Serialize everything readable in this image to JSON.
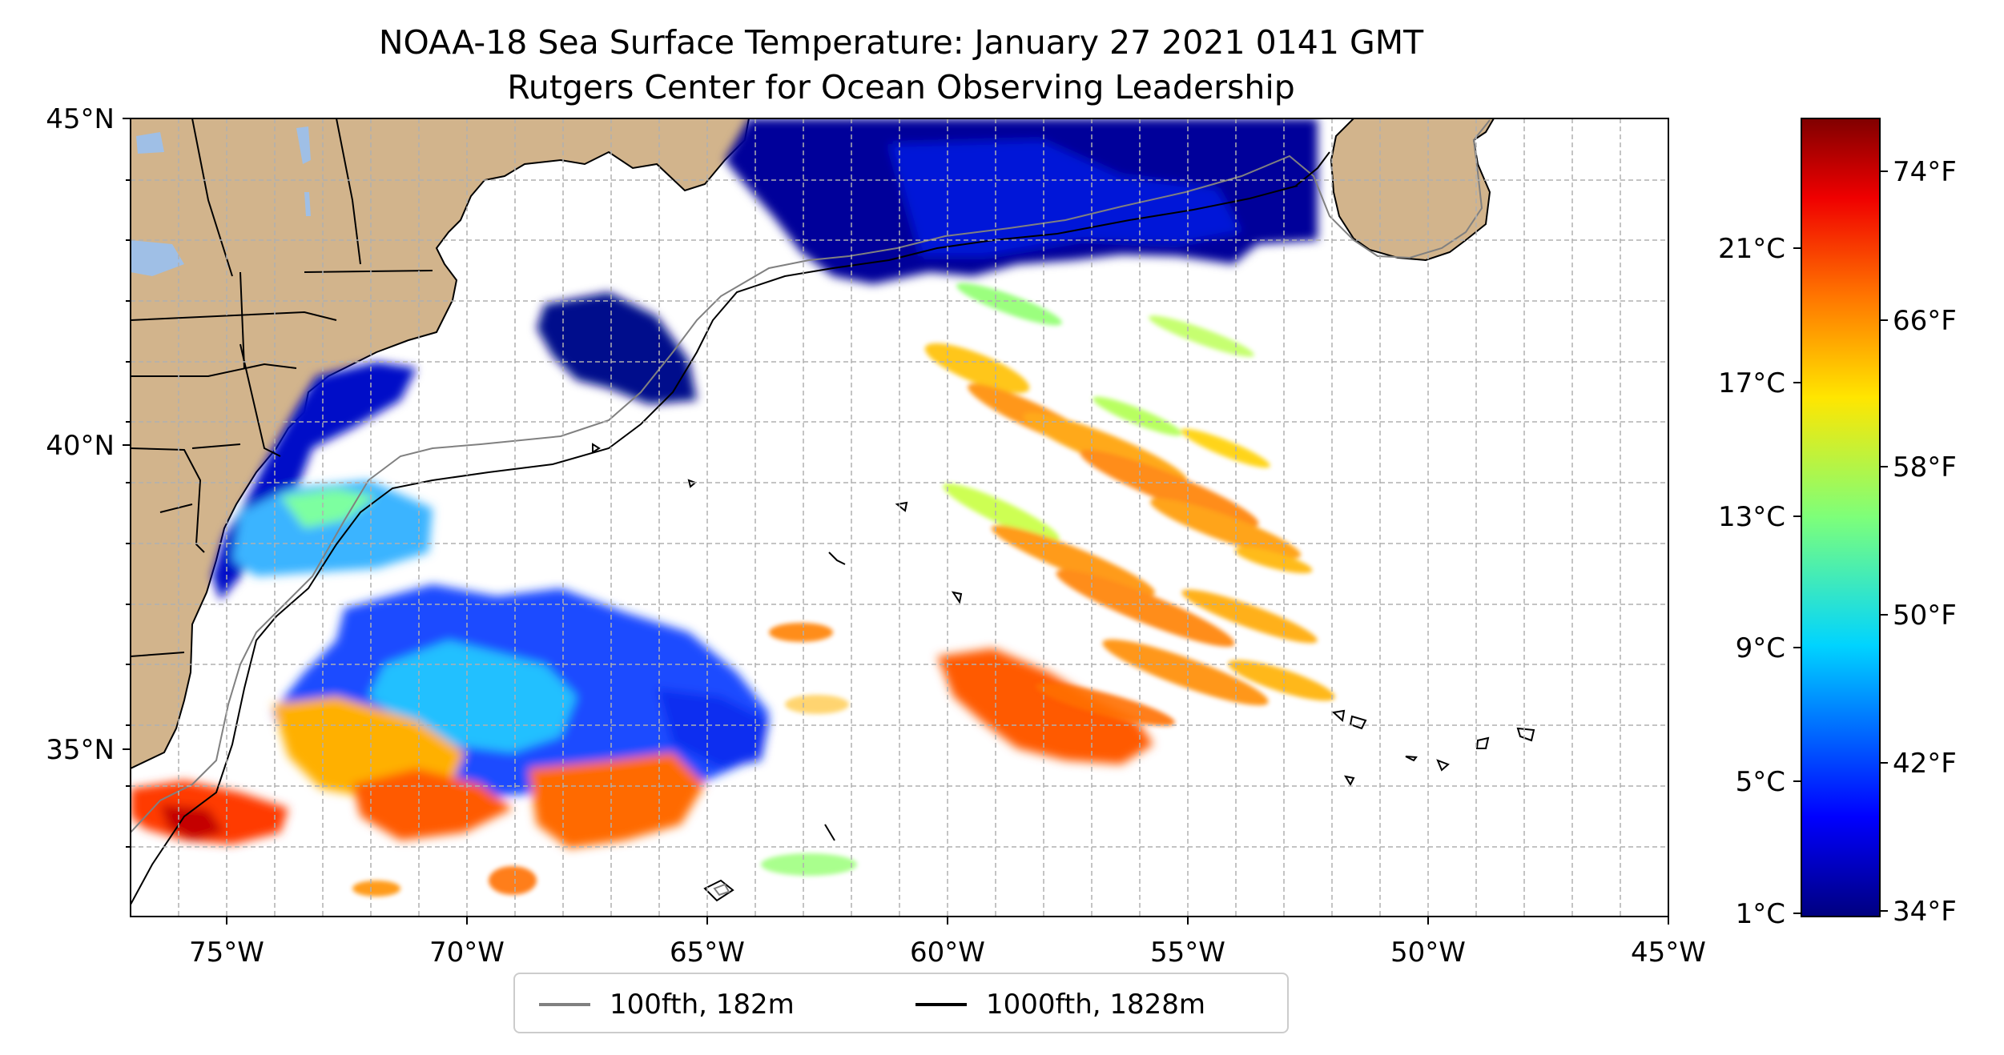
{
  "title": {
    "line1": "NOAA-18 Sea Surface Temperature: January 27 2021 0141 GMT",
    "line2": "Rutgers Center for Ocean Observing Leadership"
  },
  "map": {
    "projection": "plate-carree",
    "lon_range": [
      -77,
      -45
    ],
    "lat_range": [
      32.5,
      45
    ],
    "grid": true,
    "land_color": "#d2b48c",
    "lake_color": "#9fbfe6",
    "lat_ticks": [
      "45°N",
      "40°N",
      "35°N"
    ],
    "lon_ticks": [
      "75°W",
      "70°W",
      "65°W",
      "60°W",
      "55°W",
      "50°W",
      "45°W"
    ]
  },
  "colorbar": {
    "colormap": "jet",
    "range_c": [
      0.6,
      25.4
    ],
    "celsius_ticks": [
      "21°C",
      "17°C",
      "13°C",
      "9°C",
      "5°C",
      "1°C"
    ],
    "fahrenheit_ticks": [
      "74°F",
      "66°F",
      "58°F",
      "50°F",
      "42°F",
      "34°F"
    ]
  },
  "legend": {
    "placement": "bottom-center",
    "items": [
      {
        "label": "100fth, 182m",
        "color": "#808080"
      },
      {
        "label": "1000fth, 1828m",
        "color": "#000000"
      }
    ]
  }
}
